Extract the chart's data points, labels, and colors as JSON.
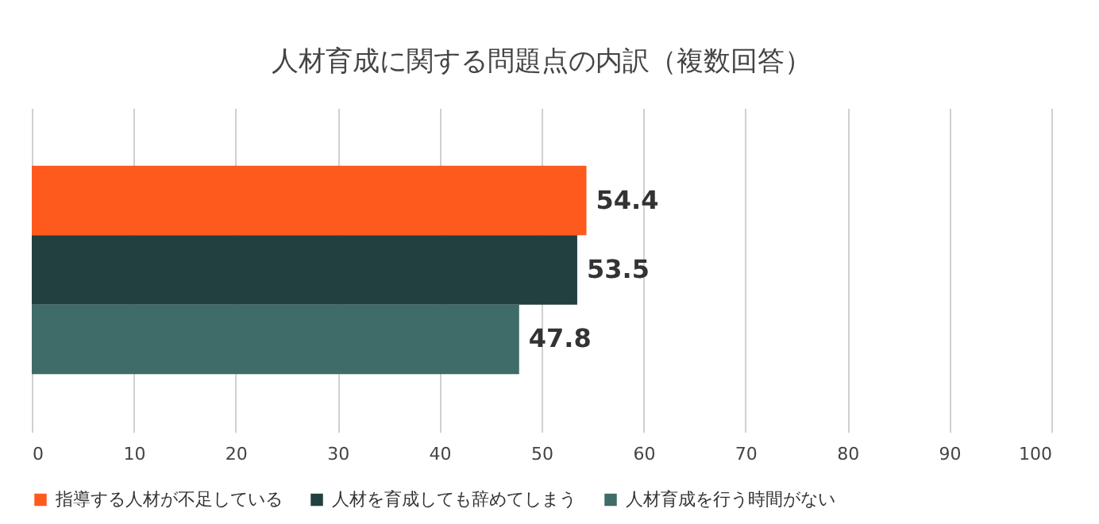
{
  "chart_data": {
    "type": "bar",
    "orientation": "horizontal",
    "title": "人材育成に関する問題点の内訳（複数回答）",
    "categories": [
      null
    ],
    "series": [
      {
        "name": "指導する人材が不足している",
        "color": "#fe5a1d",
        "values": [
          54.4
        ]
      },
      {
        "name": "人材を育成しても辞めてしまう",
        "color": "#22403f",
        "values": [
          53.5
        ]
      },
      {
        "name": "人材育成を行う時間がない",
        "color": "#3f6b68",
        "values": [
          47.8
        ]
      }
    ],
    "xlim": [
      0,
      100
    ],
    "xticks": [
      0,
      10,
      20,
      30,
      40,
      50,
      60,
      70,
      80,
      90,
      100
    ],
    "grid": "x",
    "legend": "bottom",
    "data_labels": true
  }
}
